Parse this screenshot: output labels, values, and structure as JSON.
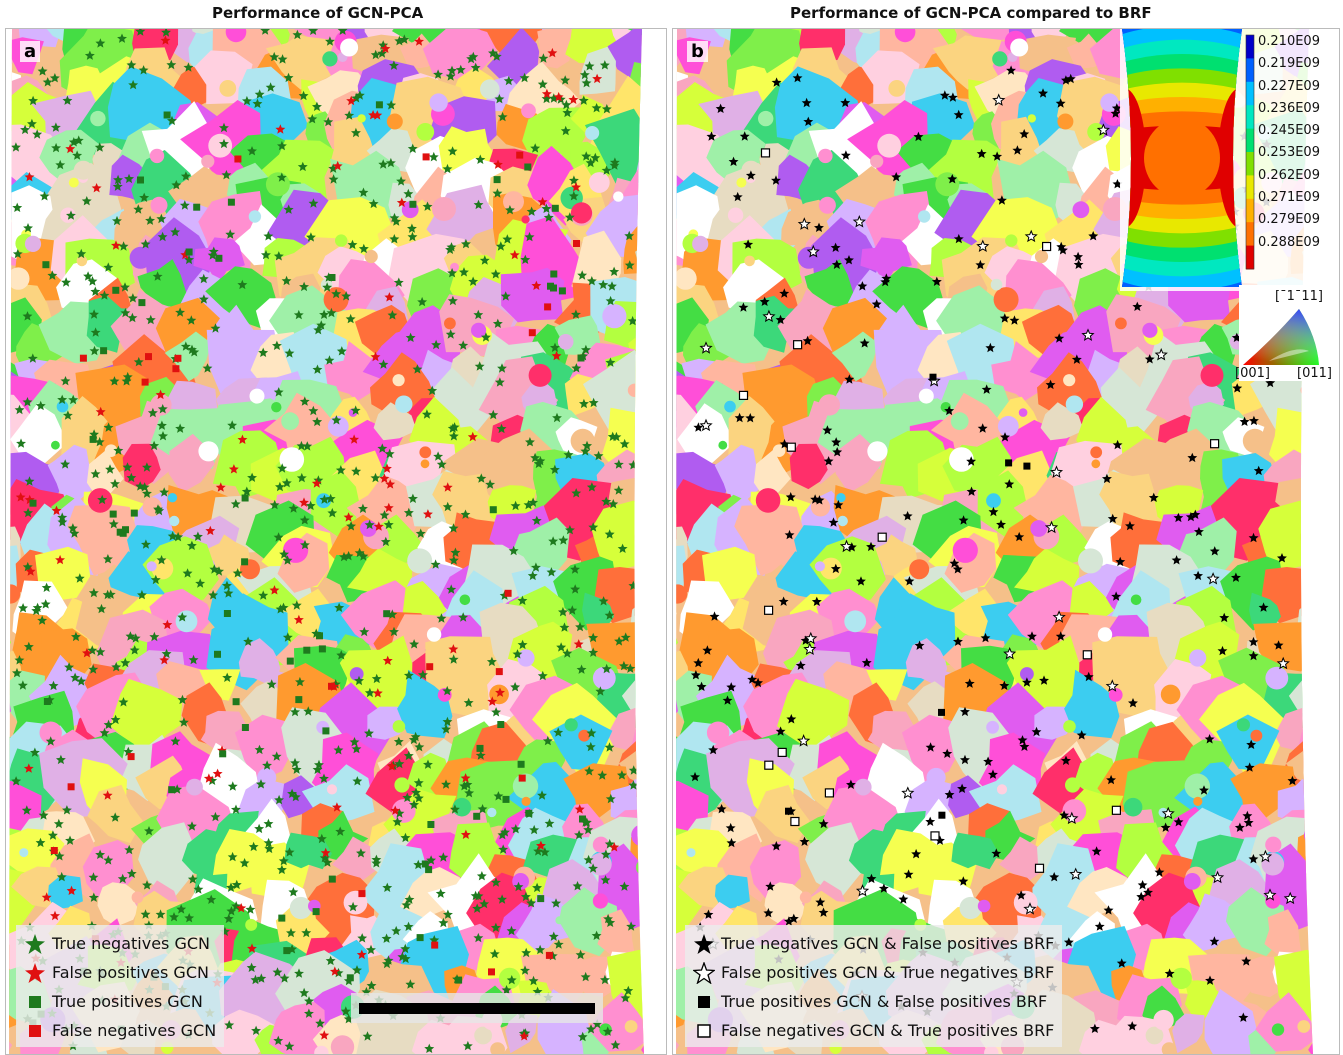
{
  "titles": {
    "a": "Performance of GCN-PCA",
    "b": "Performance of GCN-PCA compared to BRF"
  },
  "panel_labels": {
    "a": "a",
    "b": "b"
  },
  "legend_a": [
    {
      "label": "True negatives GCN",
      "marker": "star",
      "color": "#1e7a1e"
    },
    {
      "label": "False positives GCN",
      "marker": "star",
      "color": "#e01010"
    },
    {
      "label": "True positives GCN",
      "marker": "square",
      "color": "#1e7a1e"
    },
    {
      "label": "False negatives GCN",
      "marker": "square",
      "color": "#e01010"
    }
  ],
  "legend_b": [
    {
      "label": "True negatives GCN & False positives BRF",
      "marker": "star-filled",
      "color": "#000000"
    },
    {
      "label": "False positives GCN & True negatives BRF",
      "marker": "star-open",
      "color": "#000000"
    },
    {
      "label": "True positives GCN & False positives BRF",
      "marker": "square-filled",
      "color": "#000000"
    },
    {
      "label": "False negatives GCN & True positives BRF",
      "marker": "square-open",
      "color": "#000000"
    }
  ],
  "colorbar": {
    "ticks": [
      "0.210E09",
      "0.219E09",
      "0.227E09",
      "0.236E09",
      "0.245E09",
      "0.253E09",
      "0.262E09",
      "0.271E09",
      "0.279E09",
      "0.288E09"
    ],
    "colors": [
      "#0000c8",
      "#0060ff",
      "#00c0ff",
      "#00e8c0",
      "#00e070",
      "#80e000",
      "#e8e800",
      "#ffb000",
      "#ff7000",
      "#e00000"
    ]
  },
  "ipf": {
    "top": "[¯1¯11]",
    "left": "[001]",
    "right": "[011]"
  },
  "grain_palette": [
    "#ff4fd8",
    "#ff8fd0",
    "#f9a6c0",
    "#ffb6a0",
    "#f5c089",
    "#fbd480",
    "#ffe56a",
    "#f5ff50",
    "#d6ff3a",
    "#b3ff40",
    "#7fef4a",
    "#44dd44",
    "#3cd87a",
    "#9ff0a8",
    "#ffe6c2",
    "#e7dcc2",
    "#d6e6d6",
    "#b0e6f0",
    "#3ccdf0",
    "#d6b3ff",
    "#b05cf0",
    "#e0b0e6",
    "#ff2f6a",
    "#ff6f3a",
    "#ff9a2f",
    "#e05cf0",
    "#ffffff",
    "#ffd0e0"
  ]
}
